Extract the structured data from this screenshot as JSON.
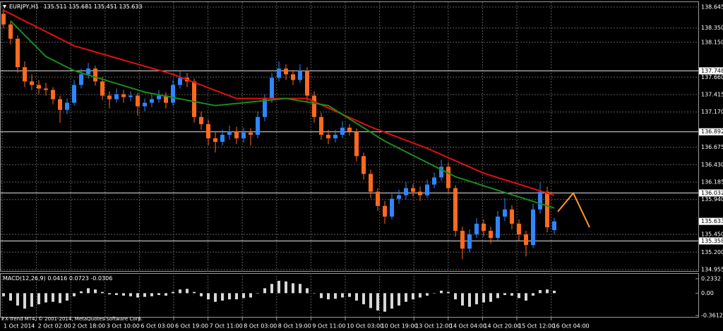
{
  "chart_data": {
    "type": "candlestick",
    "symbol": "EURJPY,H1",
    "candles": [
      [
        138.55,
        138.62,
        138.35,
        138.4
      ],
      [
        138.4,
        138.45,
        138.12,
        138.2
      ],
      [
        138.2,
        138.25,
        137.72,
        137.8
      ],
      [
        137.8,
        137.88,
        137.52,
        137.6
      ],
      [
        137.6,
        137.7,
        137.48,
        137.55
      ],
      [
        137.55,
        137.62,
        137.42,
        137.5
      ],
      [
        137.5,
        137.58,
        137.4,
        137.48
      ],
      [
        137.48,
        137.52,
        137.28,
        137.35
      ],
      [
        137.35,
        137.4,
        137.02,
        137.2
      ],
      [
        137.2,
        137.36,
        137.14,
        137.3
      ],
      [
        137.3,
        137.62,
        137.26,
        137.55
      ],
      [
        137.55,
        137.78,
        137.5,
        137.7
      ],
      [
        137.7,
        137.86,
        137.64,
        137.78
      ],
      [
        137.78,
        137.82,
        137.54,
        137.6
      ],
      [
        137.6,
        137.66,
        137.34,
        137.4
      ],
      [
        137.4,
        137.46,
        137.22,
        137.35
      ],
      [
        137.35,
        137.5,
        137.3,
        137.42
      ],
      [
        137.42,
        137.48,
        137.3,
        137.38
      ],
      [
        137.38,
        137.46,
        137.32,
        137.4
      ],
      [
        137.4,
        137.44,
        137.12,
        137.25
      ],
      [
        137.25,
        137.36,
        137.18,
        137.3
      ],
      [
        137.3,
        137.42,
        137.24,
        137.35
      ],
      [
        137.35,
        137.48,
        137.3,
        137.4
      ],
      [
        137.4,
        137.45,
        137.22,
        137.3
      ],
      [
        137.3,
        137.62,
        137.26,
        137.55
      ],
      [
        137.55,
        137.74,
        137.5,
        137.65
      ],
      [
        137.65,
        137.72,
        137.52,
        137.6
      ],
      [
        137.6,
        137.64,
        137.02,
        137.1
      ],
      [
        137.1,
        137.18,
        136.92,
        137.0
      ],
      [
        137.0,
        137.06,
        136.7,
        136.8
      ],
      [
        136.8,
        136.9,
        136.6,
        136.75
      ],
      [
        136.75,
        136.92,
        136.7,
        136.85
      ],
      [
        136.85,
        136.98,
        136.78,
        136.9
      ],
      [
        136.9,
        136.96,
        136.72,
        136.8
      ],
      [
        136.8,
        136.95,
        136.74,
        136.88
      ],
      [
        136.88,
        136.94,
        136.7,
        136.85
      ],
      [
        136.85,
        137.18,
        136.8,
        137.1
      ],
      [
        137.1,
        137.42,
        137.04,
        137.35
      ],
      [
        137.35,
        137.72,
        137.3,
        137.65
      ],
      [
        137.65,
        137.88,
        137.6,
        137.78
      ],
      [
        137.78,
        137.84,
        137.62,
        137.7
      ],
      [
        137.7,
        137.76,
        137.55,
        137.62
      ],
      [
        137.62,
        137.84,
        137.58,
        137.75
      ],
      [
        137.75,
        137.8,
        137.32,
        137.4
      ],
      [
        137.4,
        137.46,
        137.02,
        137.1
      ],
      [
        137.1,
        137.16,
        136.78,
        136.85
      ],
      [
        136.85,
        136.92,
        136.72,
        136.8
      ],
      [
        136.8,
        136.92,
        136.74,
        136.85
      ],
      [
        136.85,
        137.04,
        136.8,
        136.95
      ],
      [
        136.95,
        137.0,
        136.84,
        136.9
      ],
      [
        136.9,
        136.94,
        136.48,
        136.55
      ],
      [
        136.55,
        136.6,
        136.22,
        136.3
      ],
      [
        136.3,
        136.36,
        135.96,
        136.05
      ],
      [
        136.05,
        136.1,
        135.78,
        135.85
      ],
      [
        135.85,
        135.92,
        135.6,
        135.7
      ],
      [
        135.7,
        136.02,
        135.66,
        135.95
      ],
      [
        135.95,
        136.08,
        135.88,
        136.0
      ],
      [
        136.0,
        136.18,
        135.94,
        136.1
      ],
      [
        136.1,
        136.16,
        135.98,
        136.05
      ],
      [
        136.05,
        136.12,
        135.92,
        136.0
      ],
      [
        136.0,
        136.22,
        135.96,
        136.15
      ],
      [
        136.15,
        136.32,
        136.1,
        136.25
      ],
      [
        136.25,
        136.5,
        136.2,
        136.4
      ],
      [
        136.4,
        136.46,
        136.02,
        136.1
      ],
      [
        136.1,
        136.14,
        135.42,
        135.5
      ],
      [
        135.5,
        135.56,
        135.1,
        135.25
      ],
      [
        135.25,
        135.52,
        135.2,
        135.45
      ],
      [
        135.45,
        135.68,
        135.4,
        135.6
      ],
      [
        135.6,
        135.66,
        135.42,
        135.5
      ],
      [
        135.5,
        135.56,
        135.32,
        135.4
      ],
      [
        135.4,
        135.78,
        135.36,
        135.7
      ],
      [
        135.7,
        135.96,
        135.64,
        135.8
      ],
      [
        135.8,
        135.86,
        135.52,
        135.6
      ],
      [
        135.6,
        135.66,
        135.36,
        135.45
      ],
      [
        135.45,
        135.5,
        135.14,
        135.3
      ],
      [
        135.3,
        135.88,
        135.26,
        135.8
      ],
      [
        135.8,
        136.18,
        135.74,
        136.05
      ],
      [
        136.05,
        136.12,
        135.48,
        135.55
      ],
      [
        135.511,
        135.681,
        135.451,
        135.633
      ]
    ],
    "up_color": "#2f86ff",
    "down_color": "#ff6a1e",
    "ylim": [
      134.955,
      138.645
    ],
    "yticks": [
      138.645,
      {
        "value": 138.35,
        "label": "138.350"
      },
      {
        "value": 138.15,
        "label": "138.150"
      },
      {
        "value": 137.66,
        "label": "137.660"
      },
      137.415,
      {
        "value": 137.17,
        "label": "137.170"
      },
      136.675,
      {
        "value": 136.43,
        "label": "136.430"
      },
      136.185,
      {
        "value": 135.94,
        "label": "135.940"
      },
      {
        "value": 135.45,
        "label": "135.450"
      },
      {
        "value": 135.2,
        "label": "135.200"
      },
      134.955
    ],
    "grid": true,
    "levels": [
      137.748,
      136.892,
      136.032,
      135.358
    ],
    "current_price": 135.633,
    "xlabels": [
      "1 Oct 2014",
      "2 Oct 02:00",
      "2 Oct 18:00",
      "3 Oct 10:00",
      "6 Oct 03:00",
      "6 Oct 19:00",
      "7 Oct 11:00",
      "8 Oct 03:00",
      "8 Oct 19:00",
      "9 Oct 11:00",
      "10 Oct 03:00",
      "10 Oct 19:00",
      "13 Oct 12:00",
      "14 Oct 04:00",
      "14 Oct 20:00",
      "15 Oct 12:00",
      "16 Oct 04:00"
    ],
    "moving_averages": [
      {
        "color": "#e01010",
        "x": [
          0,
          10,
          24,
          33,
          43,
          52,
          60,
          68,
          78
        ],
        "values": [
          138.6,
          138.1,
          137.7,
          137.36,
          137.36,
          136.96,
          136.66,
          136.31,
          136.0
        ]
      },
      {
        "color": "#1a8c1a",
        "x": [
          1,
          6,
          10,
          20,
          30,
          40,
          46,
          54,
          64,
          70,
          78
        ],
        "values": [
          138.45,
          137.95,
          137.75,
          137.45,
          137.26,
          137.36,
          137.26,
          136.76,
          136.26,
          136.07,
          135.82
        ]
      }
    ],
    "projection": {
      "color": "#ff9a1e",
      "x": [
        78.5,
        80.7,
        83
      ],
      "values": [
        135.77,
        136.03,
        135.55
      ]
    },
    "macd": {
      "label": "MACD(12,26,9)",
      "readout": [
        0.0416,
        0.0723,
        -0.0306
      ],
      "color": "#d8d8d8",
      "ylim": [
        -0.3612,
        0.2332
      ],
      "yticks": [
        0.2332,
        {
          "value": 0,
          "label": "0.00"
        },
        -0.3612
      ],
      "values": [
        -0.05,
        -0.12,
        -0.2,
        -0.25,
        -0.22,
        -0.18,
        -0.15,
        -0.14,
        -0.16,
        -0.12,
        -0.05,
        0.03,
        0.08,
        0.06,
        0.02,
        -0.02,
        -0.03,
        -0.04,
        -0.05,
        -0.07,
        -0.06,
        -0.05,
        -0.03,
        -0.04,
        0.02,
        0.06,
        0.07,
        0.02,
        -0.05,
        -0.1,
        -0.14,
        -0.12,
        -0.1,
        -0.1,
        -0.08,
        -0.07,
        0.0,
        0.08,
        0.15,
        0.2,
        0.19,
        0.16,
        0.15,
        0.08,
        0.0,
        -0.08,
        -0.1,
        -0.09,
        -0.07,
        -0.06,
        -0.12,
        -0.18,
        -0.24,
        -0.28,
        -0.3,
        -0.25,
        -0.2,
        -0.14,
        -0.1,
        -0.07,
        -0.04,
        0.0,
        0.04,
        0.02,
        -0.1,
        -0.2,
        -0.22,
        -0.18,
        -0.15,
        -0.14,
        -0.08,
        -0.03,
        -0.04,
        -0.08,
        -0.12,
        -0.04,
        0.05,
        0.06,
        0.04
      ]
    },
    "footer": "FX-Trend MT4, © 2001-2014, MetaQuotes Software Corp."
  }
}
